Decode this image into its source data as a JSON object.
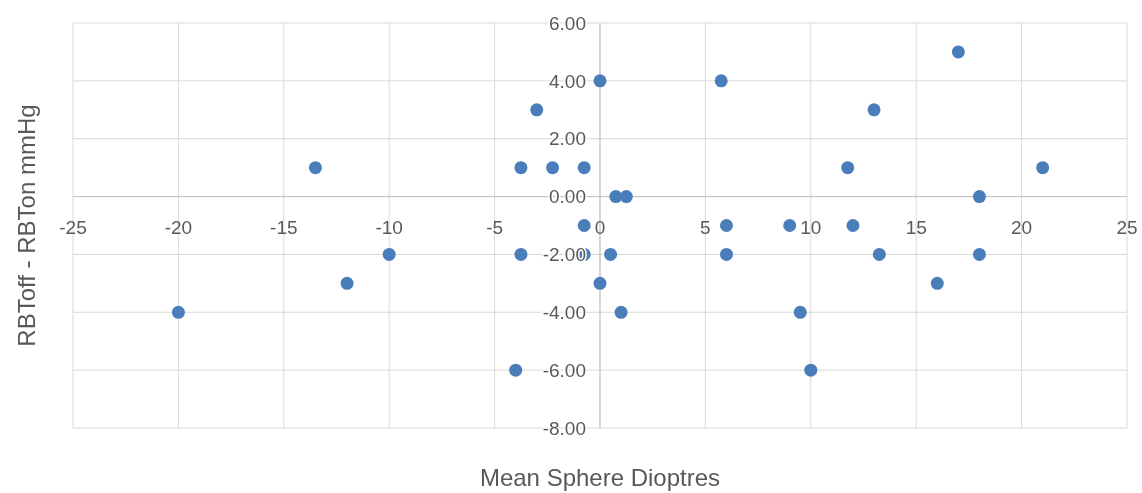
{
  "chart_data": {
    "type": "scatter",
    "xlabel": "Mean Sphere Dioptres",
    "ylabel": "RBToff - RBTon mmHg",
    "xlim": [
      -25,
      25
    ],
    "xticks": [
      -25,
      -20,
      -15,
      -10,
      -5,
      0,
      5,
      10,
      15,
      20,
      25
    ],
    "ylim": [
      -8,
      6
    ],
    "yticks": [
      {
        "value": -8,
        "label": "-8.00"
      },
      {
        "value": -6,
        "label": "-6.00"
      },
      {
        "value": -4,
        "label": "-4.00"
      },
      {
        "value": -2,
        "label": "-2.00"
      },
      {
        "value": 0,
        "label": "0.00"
      },
      {
        "value": 2,
        "label": "2.00"
      },
      {
        "value": 4,
        "label": "4.00"
      },
      {
        "value": 6,
        "label": "6.00"
      }
    ],
    "grid": true,
    "marker": "circle",
    "series": [
      {
        "color": "#4a7ebb",
        "x": [
          -20,
          -13.5,
          -12,
          -10,
          -4,
          -3.75,
          -3.75,
          -3,
          -2.25,
          -0.75,
          -0.75,
          -0.75,
          0,
          0,
          0.5,
          0.75,
          1,
          1.25,
          5.75,
          6,
          6,
          9,
          9.5,
          10,
          11.75,
          12,
          13,
          13.25,
          16,
          17,
          18,
          18,
          21
        ],
        "values": [
          -4,
          1,
          -3,
          -2,
          -6,
          1,
          -2,
          3,
          1,
          1,
          -1,
          -2,
          4,
          -3,
          -2,
          0,
          -4,
          0,
          4,
          -1,
          -2,
          -1,
          -4,
          -6,
          1,
          -1,
          3,
          -2,
          -3,
          5,
          0,
          -2,
          1
        ]
      }
    ]
  }
}
